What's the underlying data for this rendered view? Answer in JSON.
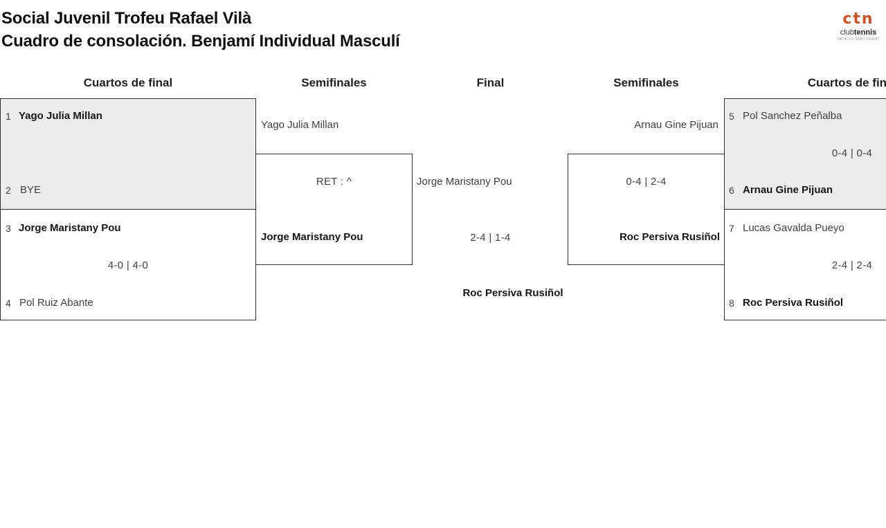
{
  "header": {
    "title_line1": "Social Juvenil Trofeu Rafael Vilà",
    "title_line2": "Cuadro de consolación. Benjamí Individual Masculí"
  },
  "logo": {
    "monogram": "ctn",
    "name_light": "club",
    "name_bold": "tennis",
    "tagline": "NATACIÓ SANT CUGAT"
  },
  "round_headers": [
    "Cuartos de final",
    "Semifinales",
    "Final",
    "Semifinales",
    "Cuartos de final"
  ],
  "matches": {
    "qf1_left": {
      "seed_top": "1",
      "player_top": "Yago Julia Millan",
      "seed_bottom": "2",
      "player_bottom": "BYE",
      "score": "",
      "winner": "Yago Julia Millan"
    },
    "qf2_left": {
      "seed_top": "3",
      "player_top": "Jorge Maristany Pou",
      "seed_bottom": "4",
      "player_bottom": "Pol Ruiz Abante",
      "score": "4-0 | 4-0",
      "winner": "Jorge Maristany Pou"
    },
    "sf_left": {
      "player_top": "Yago Julia Millan",
      "player_bottom": "Jorge Maristany Pou",
      "score": "RET : ^",
      "winner": "Jorge Maristany Pou"
    },
    "final": {
      "finalist_left": "Jorge Maristany Pou",
      "score": "2-4 | 1-4",
      "champion": "Roc Persiva Rusiñol"
    },
    "sf_right": {
      "player_top": "Arnau Gine Pijuan",
      "player_bottom": "Roc Persiva Rusiñol",
      "score": "0-4 | 2-4",
      "winner": "Roc Persiva Rusiñol"
    },
    "qf1_right": {
      "seed_top": "5",
      "player_top": "Pol Sanchez Peñalba",
      "seed_bottom": "6",
      "player_bottom": "Arnau Gine Pijuan",
      "score": "0-4 | 0-4",
      "winner": "Arnau Gine Pijuan"
    },
    "qf2_right": {
      "seed_top": "7",
      "player_top": "Lucas Gavalda Pueyo",
      "seed_bottom": "8",
      "player_bottom": "Roc Persiva Rusiñol",
      "score": "2-4 | 2-4",
      "winner": "Roc Persiva Rusiñol"
    }
  },
  "colors": {
    "accent_orange": "#d4501e",
    "match_alt_background": "#ececec",
    "box_border": "#2e2e2e"
  }
}
